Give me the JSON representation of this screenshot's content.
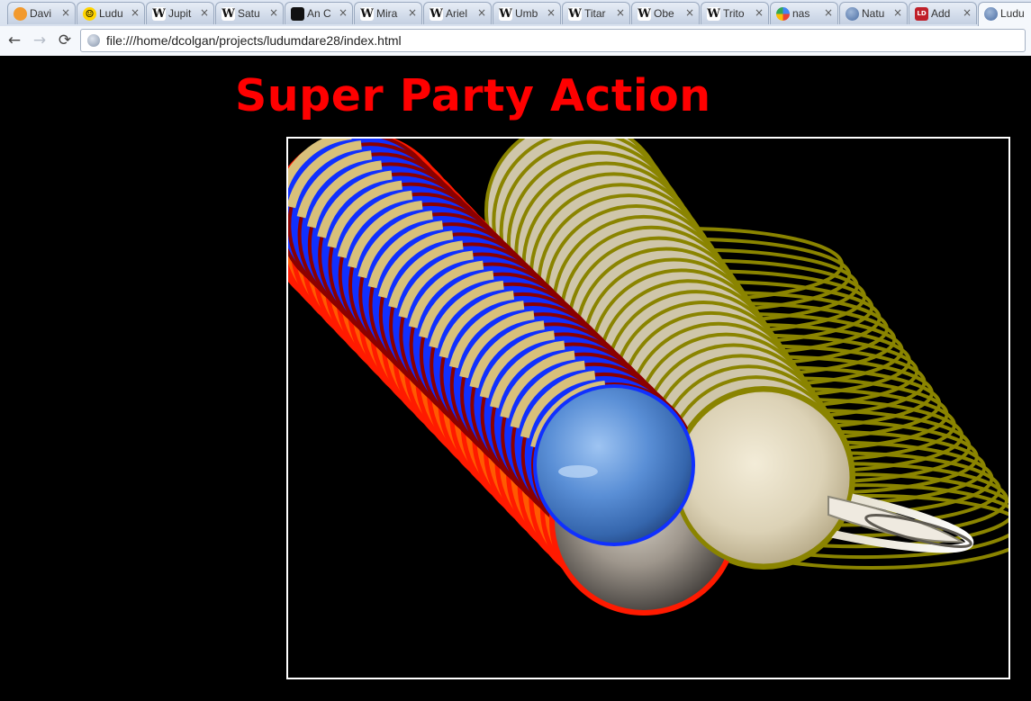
{
  "browser": {
    "tabs": [
      {
        "label": "Davi",
        "favicon": "orange-circle-icon"
      },
      {
        "label": "Ludu",
        "favicon": "smiley-icon"
      },
      {
        "label": "Jupit",
        "favicon": "wikipedia-icon"
      },
      {
        "label": "Satu",
        "favicon": "wikipedia-icon"
      },
      {
        "label": "An C",
        "favicon": "apod-icon"
      },
      {
        "label": "Mira",
        "favicon": "wikipedia-icon"
      },
      {
        "label": "Ariel",
        "favicon": "wikipedia-icon"
      },
      {
        "label": "Umb",
        "favicon": "wikipedia-icon"
      },
      {
        "label": "Titar",
        "favicon": "wikipedia-icon"
      },
      {
        "label": "Obe",
        "favicon": "wikipedia-icon"
      },
      {
        "label": "Trito",
        "favicon": "wikipedia-icon"
      },
      {
        "label": "nas",
        "favicon": "google-icon"
      },
      {
        "label": "Natu",
        "favicon": "globe-icon"
      },
      {
        "label": "Add",
        "favicon": "ld-icon"
      },
      {
        "label": "Ludu",
        "favicon": "globe-icon",
        "active": true
      }
    ],
    "close_glyph": "×",
    "address": "file:///home/dcolgan/projects/ludumdare28/index.html"
  },
  "page": {
    "title": "Super Party Action"
  },
  "game": {
    "colors": {
      "jupiter_trail": "#ff1a00",
      "neptune_trail": "#1030ff",
      "saturn_trail": "#8a8400",
      "stripe_dark": "#8b0000",
      "stripe_tan": "#d8c07a",
      "border": "#ffffff"
    },
    "planets": [
      "jupiter",
      "neptune",
      "saturn"
    ]
  }
}
